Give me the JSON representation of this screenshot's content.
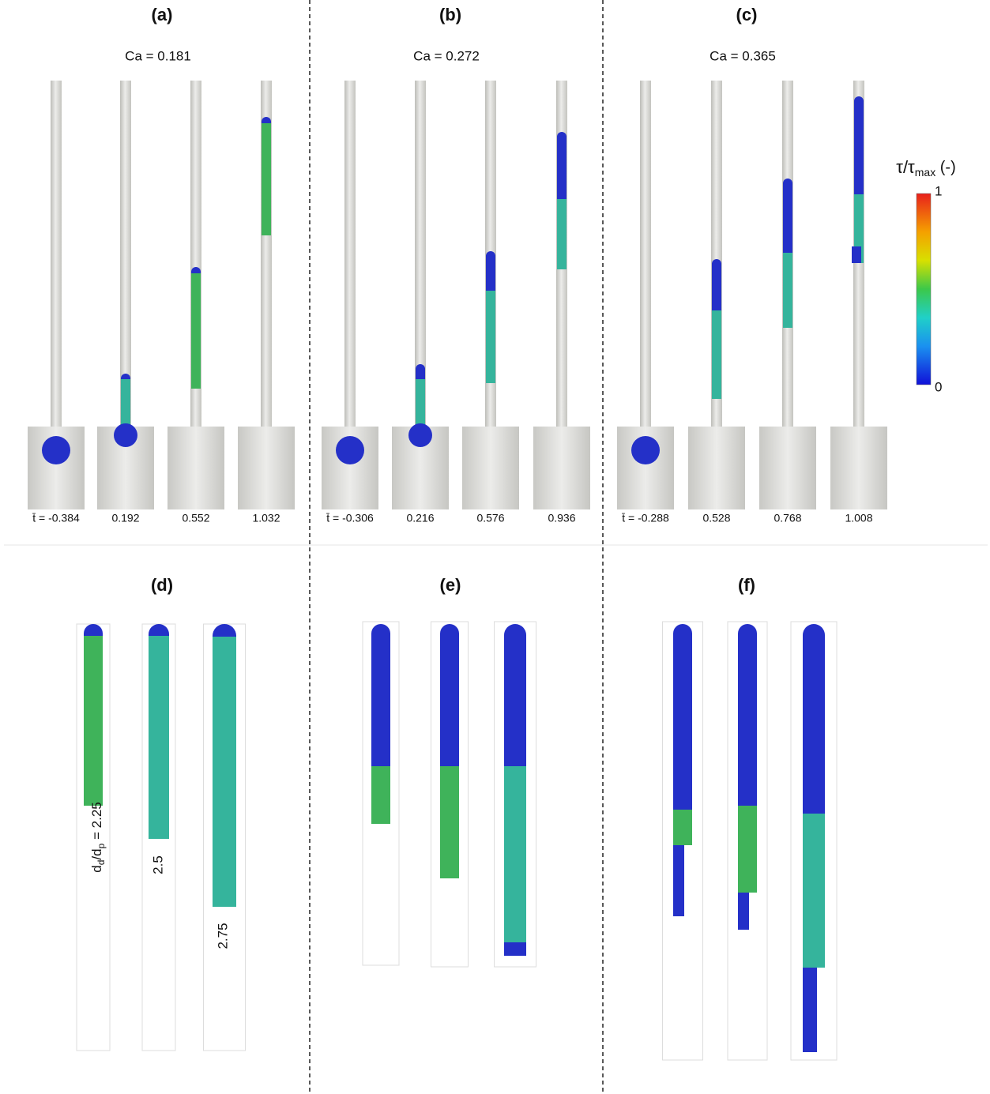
{
  "panels": [
    {
      "label": "(a)",
      "ca": "Ca = 0.181",
      "times": [
        "t̄ = -0.384",
        "0.192",
        "0.552",
        "1.032"
      ]
    },
    {
      "label": "(b)",
      "ca": "Ca = 0.272",
      "times": [
        "t̄ = -0.306",
        "0.216",
        "0.576",
        "0.936"
      ]
    },
    {
      "label": "(c)",
      "ca": "Ca = 0.365",
      "times": [
        "t̄ = -0.288",
        "0.528",
        "0.768",
        "1.008"
      ]
    }
  ],
  "bottom_panels": [
    {
      "label": "(d)"
    },
    {
      "label": "(e)"
    },
    {
      "label": "(f)"
    }
  ],
  "ratio_labels": {
    "first": [
      "d",
      "d",
      "/d",
      "p",
      " = 2.25"
    ],
    "others": [
      "2.5",
      "2.75"
    ]
  },
  "colorbar": {
    "title": [
      "τ/τ",
      "max",
      " (-)"
    ],
    "ticks": [
      1,
      0
    ]
  }
}
